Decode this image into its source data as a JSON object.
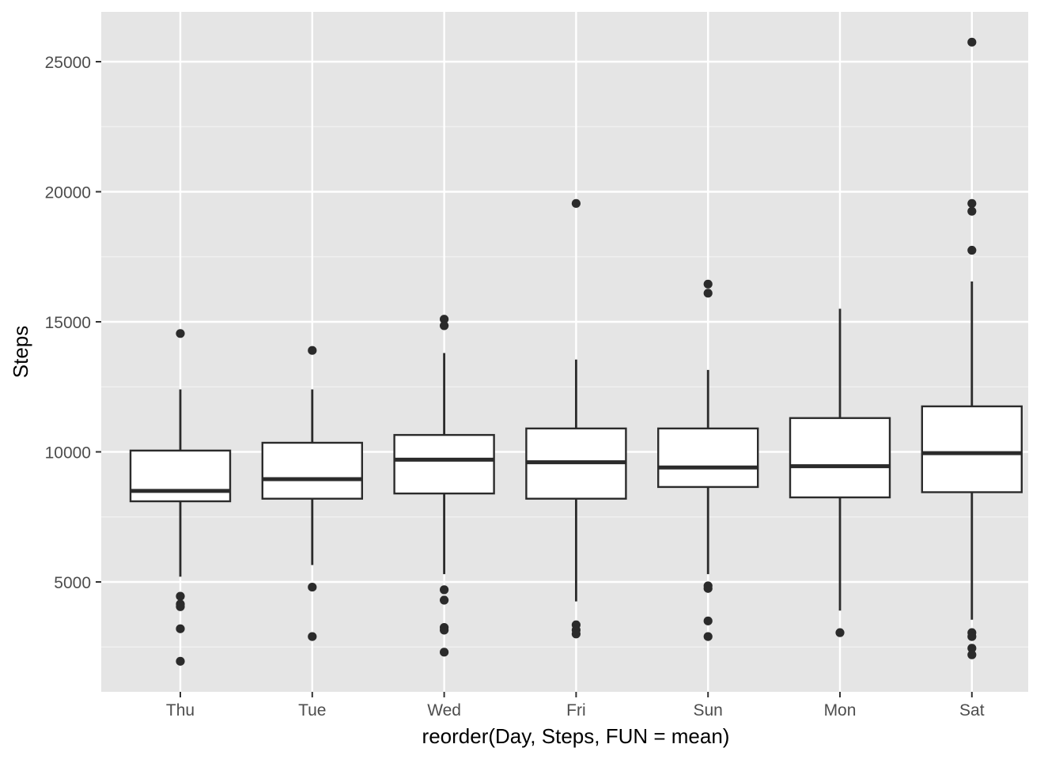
{
  "chart_data": {
    "type": "boxplot",
    "xlabel": "reorder(Day, Steps, FUN = mean)",
    "ylabel": "Steps",
    "categories": [
      "Thu",
      "Tue",
      "Wed",
      "Fri",
      "Sun",
      "Mon",
      "Sat"
    ],
    "y_ticks": [
      5000,
      10000,
      15000,
      20000,
      25000
    ],
    "y_tick_labels": [
      "5000",
      "10000",
      "15000",
      "20000",
      "25000"
    ],
    "ylim": [
      700,
      26800
    ],
    "grid": true,
    "legend": "none",
    "boxes": [
      {
        "category": "Thu",
        "whisker_low": 5200,
        "q1": 8100,
        "median": 8500,
        "q3": 10050,
        "whisker_high": 12400,
        "outliers": [
          14550,
          4450,
          4150,
          4050,
          3200,
          1950
        ]
      },
      {
        "category": "Tue",
        "whisker_low": 5650,
        "q1": 8200,
        "median": 8950,
        "q3": 10350,
        "whisker_high": 12400,
        "outliers": [
          13900,
          4800,
          2900
        ]
      },
      {
        "category": "Wed",
        "whisker_low": 5300,
        "q1": 8400,
        "median": 9700,
        "q3": 10650,
        "whisker_high": 13800,
        "outliers": [
          15100,
          14850,
          4700,
          4300,
          3250,
          3150,
          2300
        ]
      },
      {
        "category": "Fri",
        "whisker_low": 4250,
        "q1": 8200,
        "median": 9600,
        "q3": 10900,
        "whisker_high": 13550,
        "outliers": [
          19550,
          3350,
          3150,
          3000
        ]
      },
      {
        "category": "Sun",
        "whisker_low": 5300,
        "q1": 8650,
        "median": 9400,
        "q3": 10900,
        "whisker_high": 13150,
        "outliers": [
          16450,
          16100,
          4850,
          4750,
          3500,
          2900
        ]
      },
      {
        "category": "Mon",
        "whisker_low": 3900,
        "q1": 8250,
        "median": 9450,
        "q3": 11300,
        "whisker_high": 15500,
        "outliers": [
          3050
        ]
      },
      {
        "category": "Sat",
        "whisker_low": 3550,
        "q1": 8450,
        "median": 9950,
        "q3": 11750,
        "whisker_high": 16550,
        "outliers": [
          25750,
          19550,
          19250,
          17750,
          3050,
          2900,
          2450,
          2200
        ]
      }
    ],
    "colors": {
      "panel_background": "#e5e5e5",
      "grid_major": "#ffffff",
      "grid_minor": "#f2f2f2",
      "box_fill": "#ffffff",
      "box_stroke": "#2b2b2b",
      "tick_text": "#4d4d4d",
      "axis_title": "#000000"
    }
  }
}
